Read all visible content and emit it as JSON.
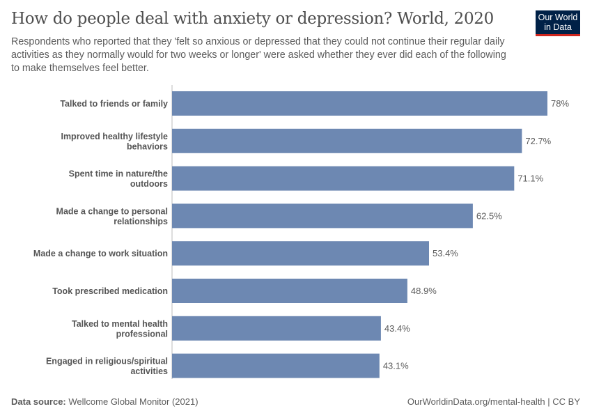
{
  "header": {
    "title": "How do people deal with anxiety or depression? World, 2020",
    "subtitle": "Respondents who reported that they 'felt so anxious or depressed that they could not continue their regular daily activities as they normally would for two weeks or longer' were asked whether they ever did each of the following to make themselves feel better.",
    "logo": "Our World in Data"
  },
  "chart_data": {
    "type": "bar",
    "orientation": "horizontal",
    "categories": [
      "Talked to friends or family",
      "Improved healthy lifestyle behaviors",
      "Spent time in nature/the outdoors",
      "Made a change to personal relationships",
      "Made a change to work situation",
      "Took prescribed medication",
      "Talked to mental health professional",
      "Engaged in religious/spiritual activities"
    ],
    "values": [
      78,
      72.7,
      71.1,
      62.5,
      53.4,
      48.9,
      43.4,
      43.1
    ],
    "value_labels": [
      "78%",
      "72.7%",
      "71.1%",
      "62.5%",
      "53.4%",
      "48.9%",
      "43.4%",
      "43.1%"
    ],
    "unit": "%",
    "xlim": [
      0,
      78
    ],
    "grid": false,
    "bar_color": "#6d88b2"
  },
  "footer": {
    "source_label": "Data source:",
    "source": "Wellcome Global Monitor (2021)",
    "url": "OurWorldinData.org/mental-health | CC BY"
  }
}
